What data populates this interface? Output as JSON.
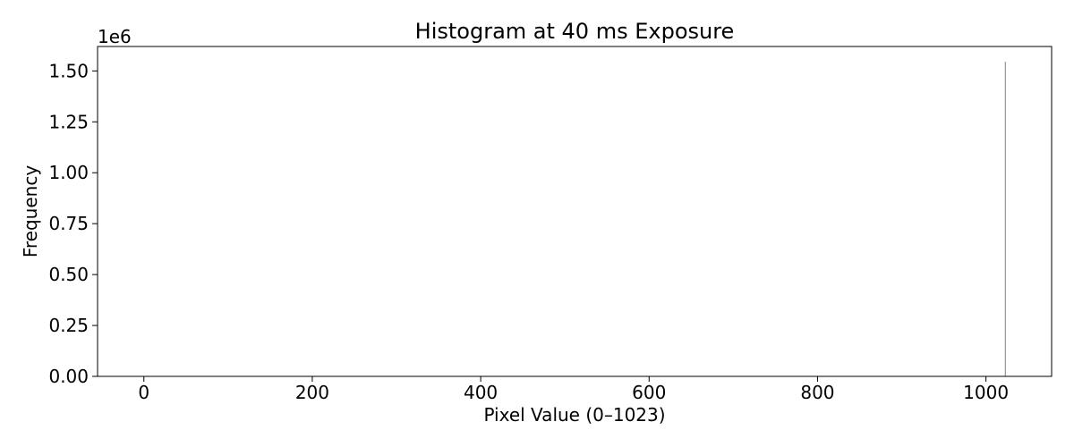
{
  "chart_data": {
    "type": "bar",
    "title": "Histogram at 40 ms Exposure",
    "xlabel": "Pixel Value (0–1023)",
    "ylabel": "Frequency",
    "y_offset_label": "1e6",
    "xlim": [
      -55,
      1078
    ],
    "ylim": [
      0,
      1620000
    ],
    "x_ticks": [
      0,
      200,
      400,
      600,
      800,
      1000
    ],
    "x_tick_labels": [
      "0",
      "200",
      "400",
      "600",
      "800",
      "1000"
    ],
    "y_ticks": [
      0,
      250000,
      500000,
      750000,
      1000000,
      1250000,
      1500000
    ],
    "y_tick_labels": [
      "0.00",
      "0.25",
      "0.50",
      "0.75",
      "1.00",
      "1.25",
      "1.50"
    ],
    "bin_width": 1,
    "series": [
      {
        "color": "#808080",
        "x": [
          1023
        ],
        "values": [
          1545000
        ]
      }
    ],
    "grid": false,
    "legend": "none"
  }
}
